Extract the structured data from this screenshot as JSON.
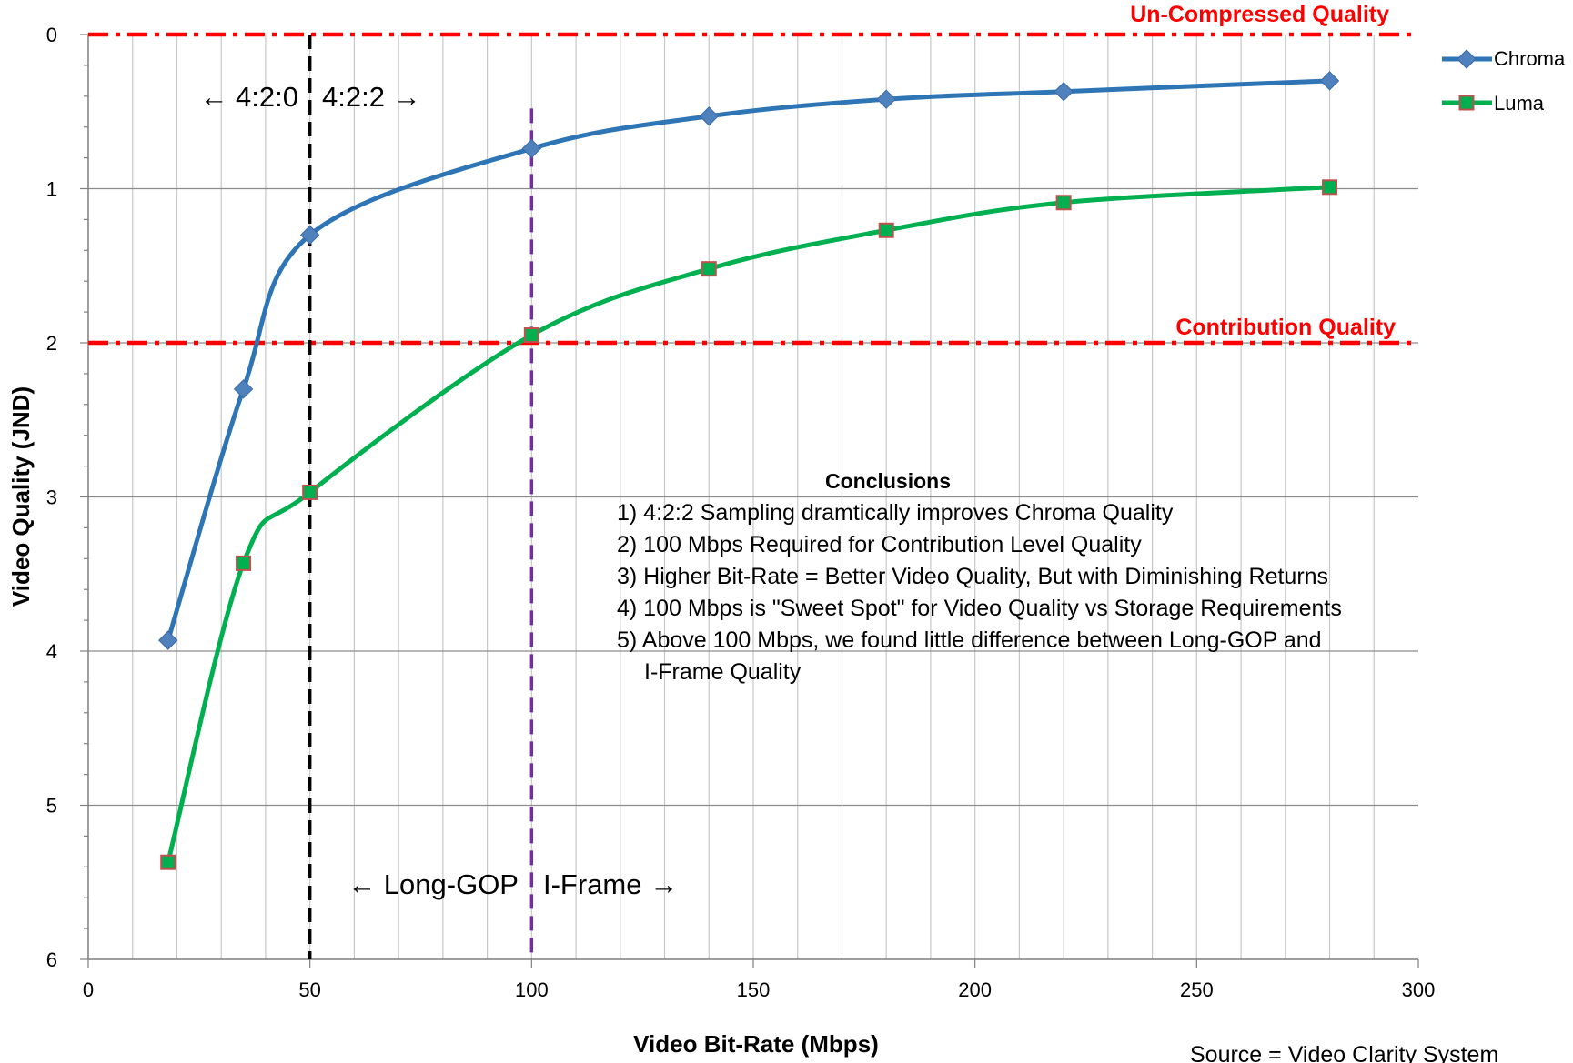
{
  "chart_data": {
    "type": "line",
    "title": "",
    "xlabel": "Video Bit-Rate (Mbps)",
    "ylabel": "Video Quality (JND)",
    "xlim": [
      0,
      300
    ],
    "ylim": [
      0,
      6
    ],
    "y_inverted": true,
    "x_ticks": [
      "0",
      "50",
      "100",
      "150",
      "200",
      "250",
      "300"
    ],
    "y_ticks": [
      "0",
      "1",
      "2",
      "3",
      "4",
      "5",
      "6"
    ],
    "x_minor_step": 10,
    "y_minor_step": 0.2,
    "grid": true,
    "legend_position": "right-top",
    "series": [
      {
        "name": "Chroma",
        "color": "#2e75b6",
        "marker": "diamond",
        "marker_color": "#4f81bd",
        "points": [
          [
            18,
            3.93
          ],
          [
            35,
            2.3
          ],
          [
            50,
            1.3
          ],
          [
            100,
            0.74
          ],
          [
            140,
            0.53
          ],
          [
            180,
            0.42
          ],
          [
            220,
            0.37
          ],
          [
            280,
            0.3
          ]
        ]
      },
      {
        "name": "Luma",
        "color": "#00b050",
        "marker": "square",
        "marker_color": "#00b050",
        "marker_edge": "#c0504d",
        "points": [
          [
            18,
            5.37
          ],
          [
            35,
            3.43
          ],
          [
            50,
            2.97
          ],
          [
            100,
            1.95
          ],
          [
            140,
            1.52
          ],
          [
            180,
            1.27
          ],
          [
            220,
            1.09
          ],
          [
            280,
            0.99
          ]
        ]
      }
    ],
    "reference_lines": [
      {
        "axis": "y",
        "value": 0,
        "label": "Un-Compressed Quality",
        "color": "#ff0000"
      },
      {
        "axis": "y",
        "value": 2,
        "label": "Contribution Quality",
        "color": "#ff0000"
      }
    ],
    "divider_lines": [
      {
        "axis": "x",
        "value": 50,
        "color": "#000000",
        "left_label": "← 4:2:0",
        "right_label": "4:2:2 →"
      },
      {
        "axis": "x",
        "value": 100,
        "color": "#7030a0",
        "left_label": "← Long-GOP",
        "right_label": "I-Frame →"
      }
    ],
    "conclusions": {
      "title": "Conclusions",
      "items": [
        "1) 4:2:2 Sampling dramtically improves Chroma Quality",
        "2) 100 Mbps Required for Contribution Level Quality",
        "3) Higher Bit-Rate = Better Video Quality, But with Diminishing Returns",
        "4) 100 Mbps is \"Sweet Spot\" for Video Quality vs Storage Requirements",
        "5) Above 100 Mbps, we found little difference between Long-GOP and",
        "I-Frame Quality"
      ]
    },
    "source": "Source = Video Clarity System"
  }
}
